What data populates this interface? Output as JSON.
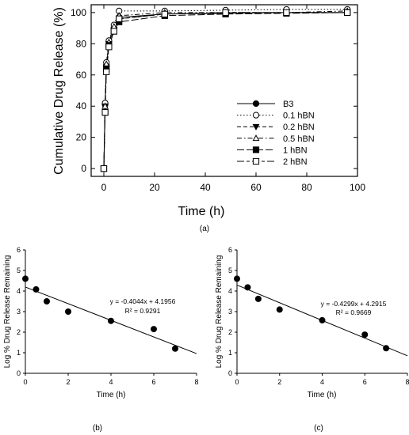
{
  "chart_data": [
    {
      "panel": "(a)",
      "type": "line",
      "xlabel": "Time (h)",
      "ylabel": "Cumulative Drug Release (%)",
      "xlim": [
        -5,
        100
      ],
      "ylim": [
        -5,
        105
      ],
      "xticks": [
        "0",
        "20",
        "40",
        "60",
        "80",
        "100"
      ],
      "yticks": [
        "0",
        "20",
        "40",
        "60",
        "80",
        "100"
      ],
      "grid": false,
      "legend_position": "right",
      "series": [
        {
          "name": "B3",
          "marker": "filled-circle",
          "line": "solid",
          "x": [
            0,
            0.5,
            1,
            2,
            4,
            6,
            24,
            48,
            72,
            96
          ],
          "y": [
            0,
            41,
            66,
            80,
            90,
            97,
            99,
            99.5,
            100,
            100
          ]
        },
        {
          "name": "0.1 hBN",
          "marker": "open-circle",
          "line": "dotted",
          "x": [
            0,
            0.5,
            1,
            2,
            4,
            6,
            24,
            48,
            72,
            96
          ],
          "y": [
            0,
            42,
            68,
            82,
            92,
            101,
            101,
            101.5,
            102,
            102
          ]
        },
        {
          "name": "0.2 hBN",
          "marker": "filled-triangle-down",
          "line": "dashed",
          "x": [
            0,
            0.5,
            1,
            2,
            4,
            6,
            24,
            48,
            72,
            96
          ],
          "y": [
            0,
            40,
            65,
            80,
            89,
            96,
            99,
            100,
            100,
            100
          ]
        },
        {
          "name": "0.5 hBN",
          "marker": "open-triangle-up",
          "line": "dash-dot",
          "x": [
            0,
            0.5,
            1,
            2,
            4,
            6,
            24,
            48,
            72,
            96
          ],
          "y": [
            0,
            40,
            67,
            81,
            91,
            98,
            100,
            100,
            100,
            101
          ]
        },
        {
          "name": "1 hBN",
          "marker": "filled-square",
          "line": "long-dash",
          "x": [
            0,
            0.5,
            1,
            2,
            4,
            6,
            24,
            48,
            72,
            96
          ],
          "y": [
            0,
            36,
            64,
            79,
            88,
            94,
            98,
            99,
            99.5,
            100
          ]
        },
        {
          "name": "2 hBN",
          "marker": "open-square",
          "line": "long-short-dash",
          "x": [
            0,
            0.5,
            1,
            2,
            4,
            6,
            24,
            48,
            72,
            96
          ],
          "y": [
            0,
            36,
            62,
            78,
            88,
            96,
            99,
            100,
            100,
            100
          ]
        }
      ]
    },
    {
      "panel": "(b)",
      "type": "scatter",
      "xlabel": "Time (h)",
      "ylabel": "Log % Drug Release Remaining",
      "xlim": [
        0,
        8
      ],
      "ylim": [
        0,
        6
      ],
      "xticks": [
        "0",
        "2",
        "4",
        "6",
        "8"
      ],
      "yticks": [
        "0",
        "1",
        "2",
        "3",
        "4",
        "5",
        "6"
      ],
      "points": {
        "x": [
          0,
          0.5,
          1,
          2,
          4,
          6,
          7
        ],
        "y": [
          4.6,
          4.08,
          3.5,
          3.0,
          2.55,
          2.15,
          1.2
        ]
      },
      "fit": {
        "slope": -0.4044,
        "intercept": 4.1956
      },
      "annotation": {
        "equation": "y = -0.4044x + 4.1956",
        "r2": "R² = 0.9291"
      }
    },
    {
      "panel": "(c)",
      "type": "scatter",
      "xlabel": "Time (h)",
      "ylabel": "Log % Drug Release Remaining",
      "xlim": [
        0,
        8
      ],
      "ylim": [
        0,
        6
      ],
      "xticks": [
        "0",
        "2",
        "4",
        "6",
        "8"
      ],
      "yticks": [
        "0",
        "1",
        "2",
        "3",
        "4",
        "5",
        "6"
      ],
      "points": {
        "x": [
          0,
          0.5,
          1,
          2,
          4,
          6,
          7
        ],
        "y": [
          4.6,
          4.18,
          3.62,
          3.1,
          2.58,
          1.88,
          1.22
        ]
      },
      "fit": {
        "slope": -0.4299,
        "intercept": 4.2915
      },
      "annotation": {
        "equation": "y = -0.4299x + 4.2915",
        "r2": "R² = 0.9669"
      }
    }
  ]
}
